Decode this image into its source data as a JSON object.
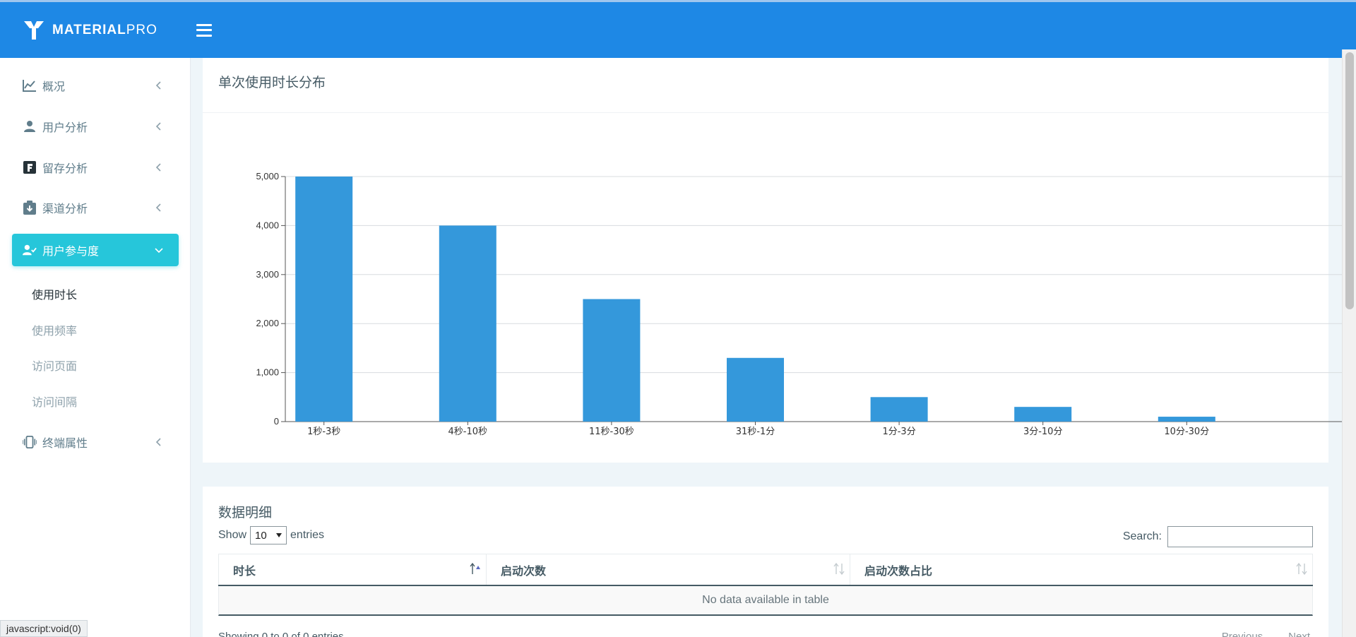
{
  "brand": {
    "bold": "MATERIAL",
    "light": "PRO"
  },
  "sidebar": {
    "items": [
      {
        "label": "概况",
        "icon": "line-chart-icon"
      },
      {
        "label": "用户分析",
        "icon": "user-icon"
      },
      {
        "label": "留存分析",
        "icon": "square-f-icon"
      },
      {
        "label": "渠道分析",
        "icon": "clipboard-download-icon"
      },
      {
        "label": "用户参与度",
        "icon": "user-check-icon",
        "active": true
      },
      {
        "label": "终端属性",
        "icon": "phone-vibrate-icon"
      }
    ],
    "subitems": [
      {
        "label": "使用时长",
        "current": true
      },
      {
        "label": "使用频率"
      },
      {
        "label": "访问页面"
      },
      {
        "label": "访问间隔"
      }
    ]
  },
  "status_tip": "javascript:void(0)",
  "chart_card": {
    "title": "单次使用时长分布"
  },
  "chart_data": {
    "type": "bar",
    "title": "单次使用时长分布",
    "categories": [
      "1秒-3秒",
      "4秒-10秒",
      "11秒-30秒",
      "31秒-1分",
      "1分-3分",
      "3分-10分",
      "10分-30分"
    ],
    "values": [
      5000,
      4000,
      2500,
      1300,
      500,
      300,
      100
    ],
    "ylim": [
      0,
      5000
    ],
    "yticks": [
      0,
      1000,
      2000,
      3000,
      4000,
      5000
    ],
    "ytick_labels": [
      "0",
      "1,000",
      "2,000",
      "3,000",
      "4,000",
      "5,000"
    ],
    "grid": true,
    "bar_color": "#3498db"
  },
  "table_card": {
    "title": "数据明细",
    "show_label": "Show",
    "length_value": "10",
    "entries_label": "entries",
    "search_label": "Search:",
    "search_value": "",
    "columns": [
      "时长",
      "启动次数",
      "启动次数占比"
    ],
    "empty_text": "No data available in table",
    "info_text": "Showing 0 to 0 of 0 entries",
    "prev_label": "Previous",
    "next_label": "Next"
  },
  "colors": {
    "topbar": "#1e88e5",
    "active": "#26c6da",
    "bar": "#3498db"
  }
}
